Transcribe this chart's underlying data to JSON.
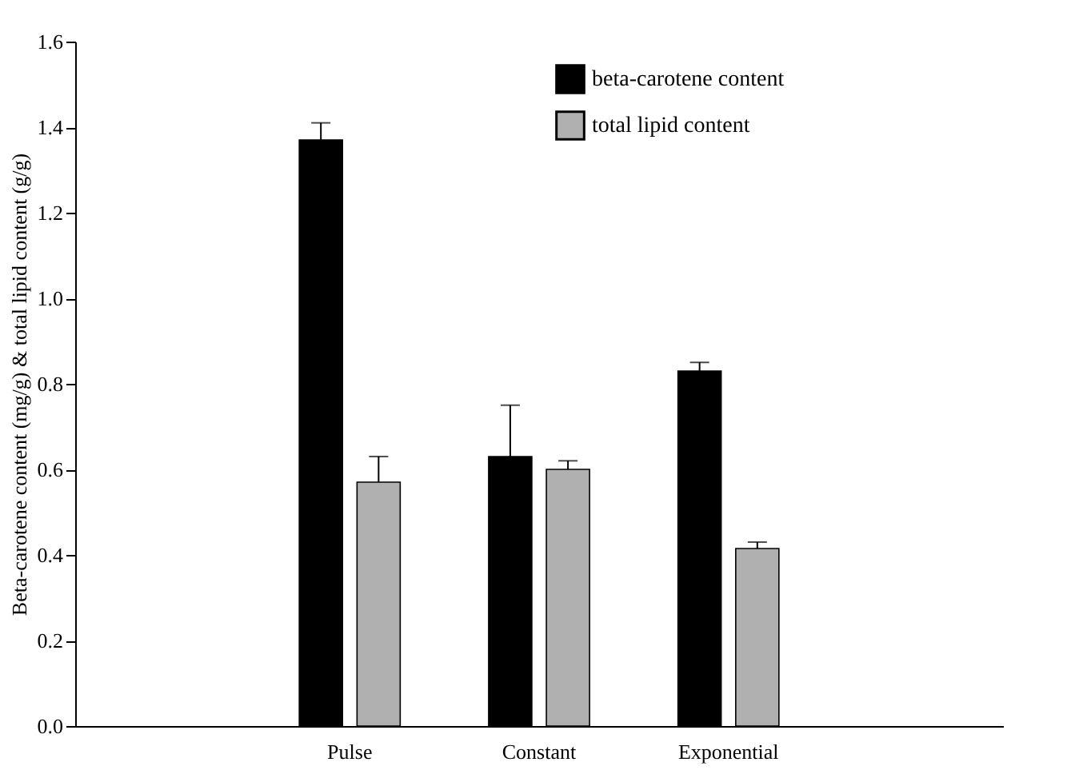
{
  "chart_data": {
    "type": "bar",
    "ylabel": "Beta-carotene content (mg/g) & total lipid content (g/g)",
    "categories": [
      "Pulse",
      "Constant",
      "Exponential"
    ],
    "series": [
      {
        "name": "beta-carotene content",
        "color": "#000000",
        "values": [
          1.37,
          0.63,
          0.83
        ],
        "errors": [
          [
            1.37,
            1.41
          ],
          [
            0.63,
            0.75
          ],
          [
            0.83,
            0.85
          ]
        ]
      },
      {
        "name": "total lipid content",
        "color": "#b0b0b0",
        "values": [
          0.57,
          0.6,
          0.415
        ],
        "errors": [
          [
            0.57,
            0.63
          ],
          [
            0.6,
            0.62
          ],
          [
            0.415,
            0.43
          ]
        ]
      }
    ],
    "ylim": [
      0,
      1.6
    ],
    "yticks": [
      {
        "value": 0,
        "label": "0.0"
      },
      0.2,
      0.4,
      0.6,
      0.8,
      {
        "value": 1,
        "label": "1.0"
      },
      1.2,
      1.4,
      1.6
    ],
    "grid": false,
    "legend": "top right"
  }
}
